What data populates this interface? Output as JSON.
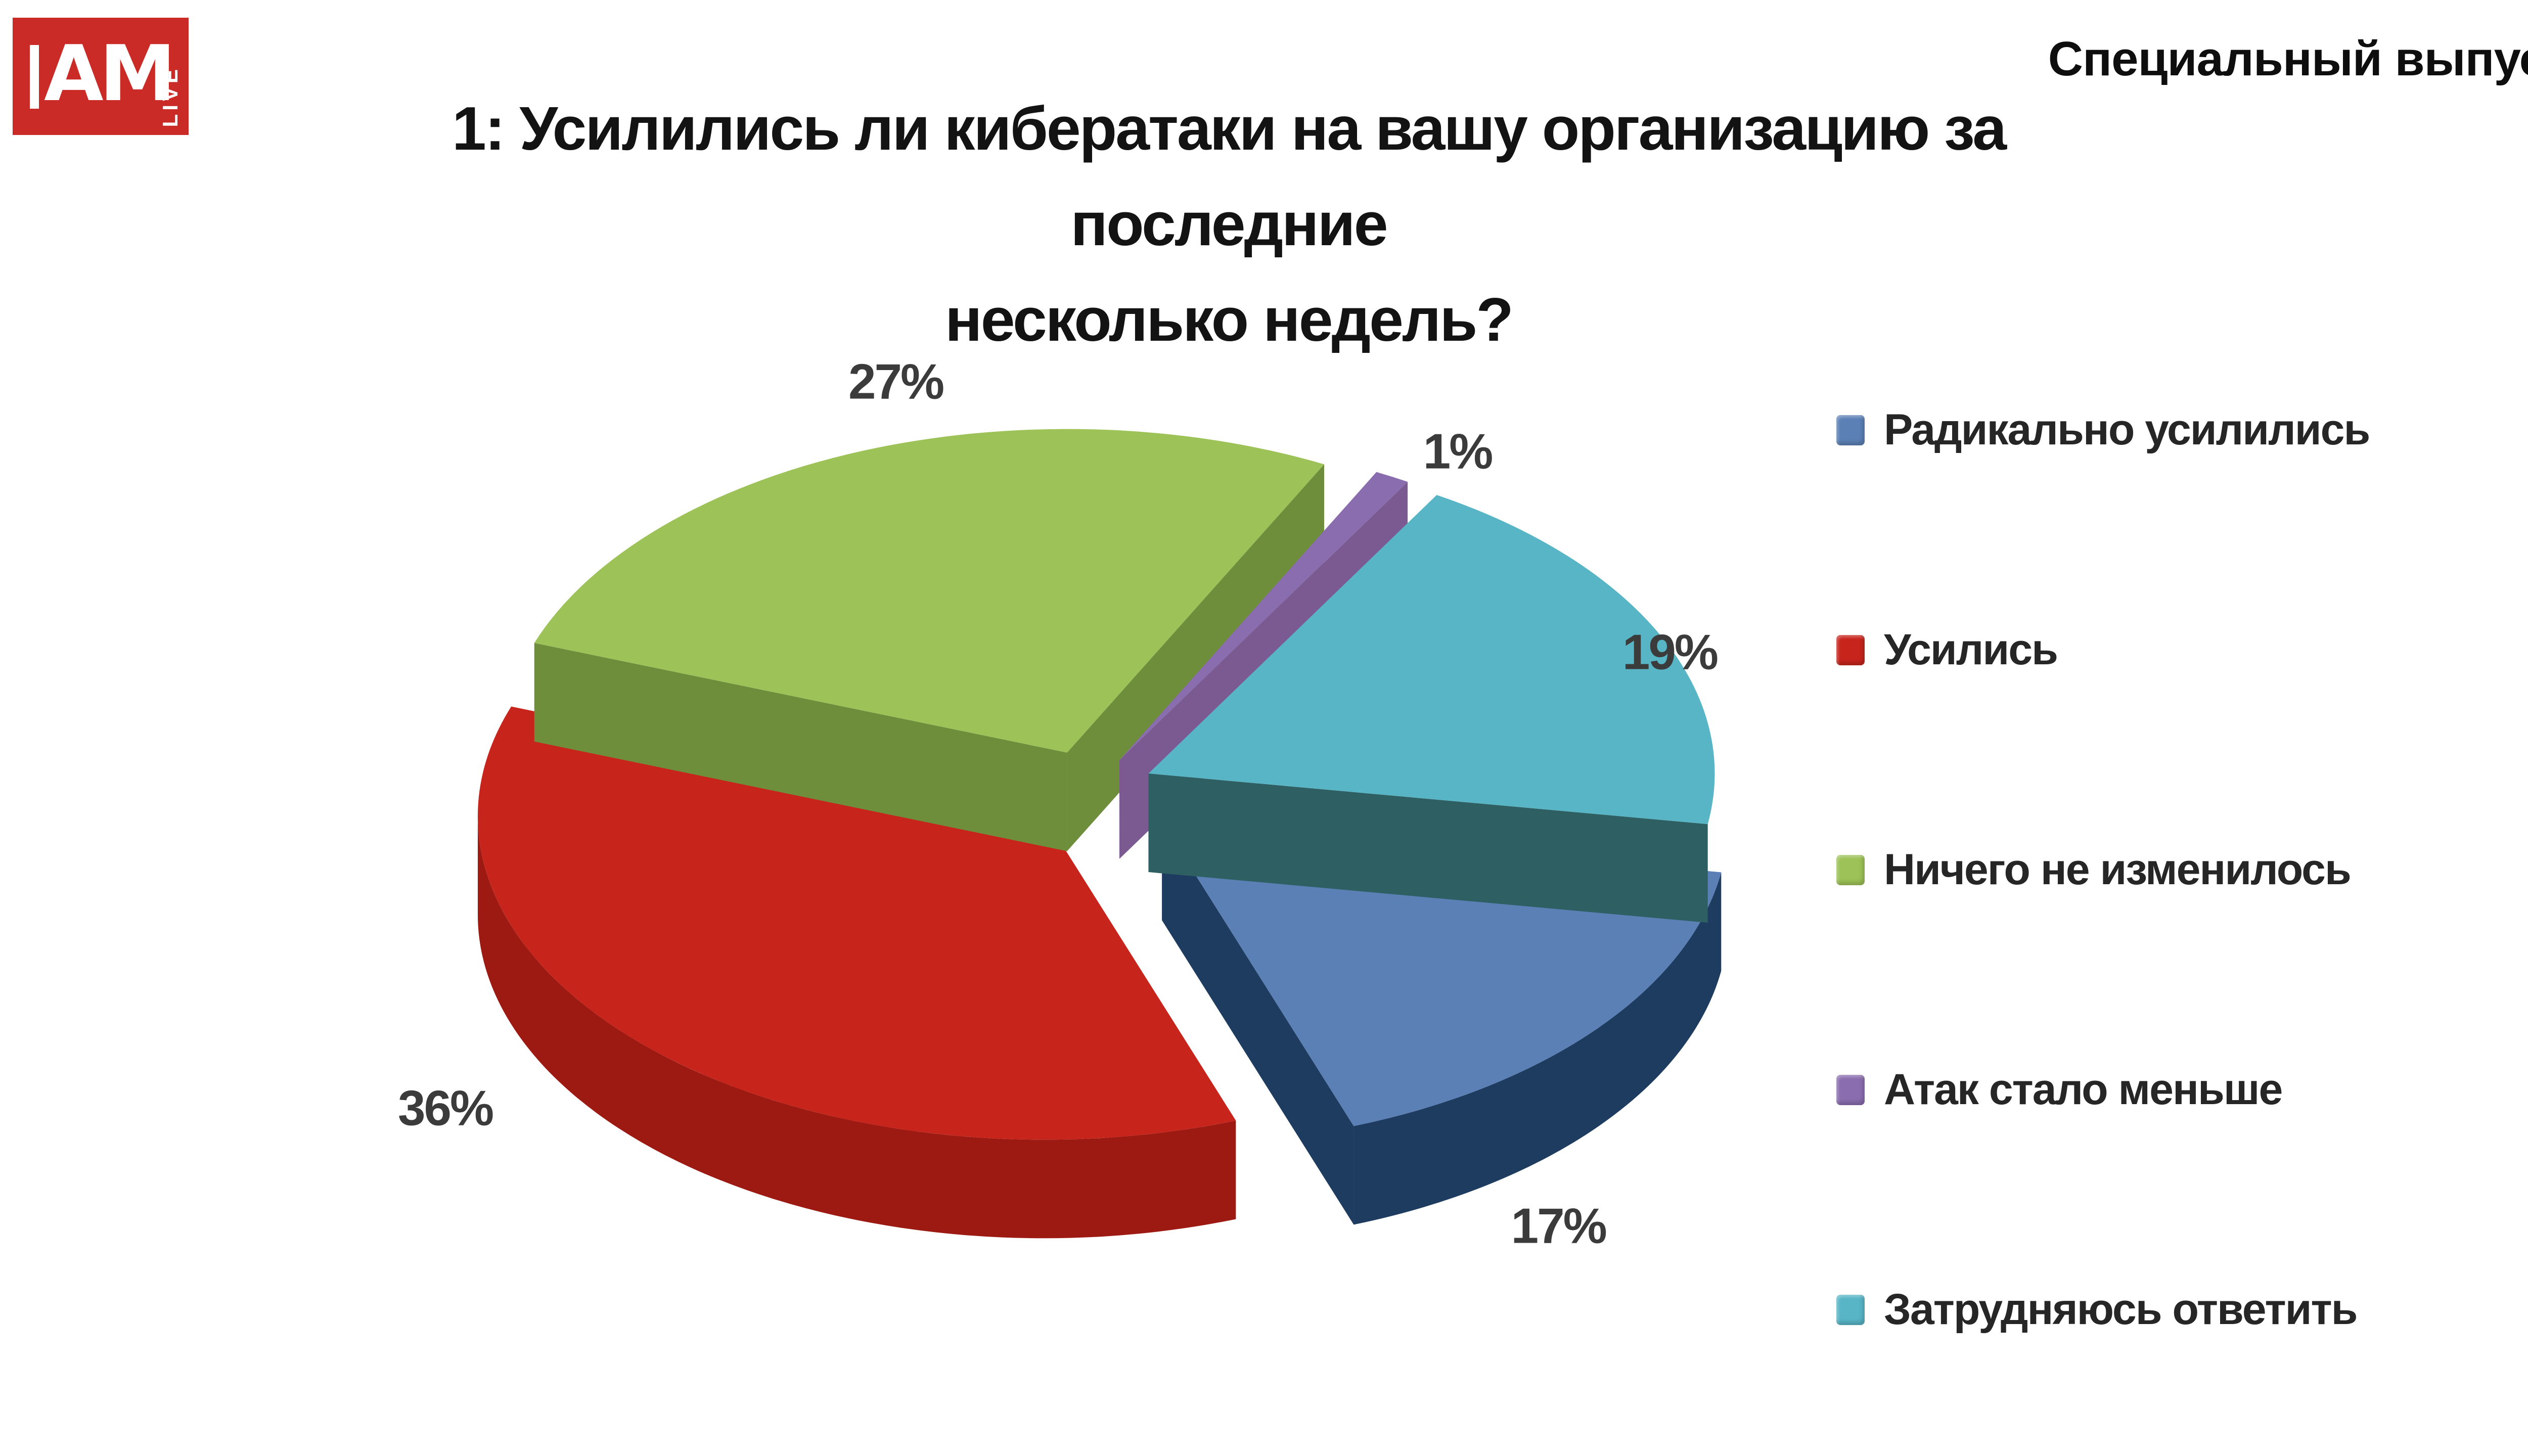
{
  "logo": {
    "text_main": "AM",
    "text_sub": "LIVE",
    "bg_color": "#cb2b26"
  },
  "header": {
    "badge": "Специальный выпуск"
  },
  "chart_data": {
    "type": "pie",
    "style": "3d-exploded",
    "title": "1:  Усилились ли кибератаки на вашу организацию за последние\nнесколько недель?",
    "legend_position": "right",
    "start_angle_deg_clockwise_from_12": 99,
    "slices": [
      {
        "label": "Радикально усилились",
        "value": 17,
        "pct_label": "17%",
        "color": "#5b80b5",
        "side_color": "#1e3c5f",
        "explode": 0.16,
        "label_pos": {
          "x": 0.602,
          "y": 0.842
        }
      },
      {
        "label": "Усились",
        "value": 36,
        "pct_label": "36%",
        "color": "#c7241c",
        "side_color": "#9d1a13",
        "explode": 0.12,
        "label_pos": {
          "x": 0.172,
          "y": 0.761
        }
      },
      {
        "label": "Ничего не изменилось",
        "value": 27,
        "pct_label": "27%",
        "color": "#9dc257",
        "side_color": "#6e8e3c",
        "explode": 0.12,
        "label_pos": {
          "x": 0.346,
          "y": 0.262
        }
      },
      {
        "label": "Атак стало меньше",
        "value": 1,
        "pct_label": "1%",
        "color": "#8a6dae",
        "side_color": "#7a5a91",
        "explode": 0.1,
        "label_pos": {
          "x": 0.563,
          "y": 0.31
        }
      },
      {
        "label": "Затрудняюсь ответить",
        "value": 19,
        "pct_label": "19%",
        "color": "#57b5c6",
        "side_color": "#2e5f62",
        "explode": 0.11,
        "label_pos": {
          "x": 0.645,
          "y": 0.448
        }
      }
    ]
  }
}
